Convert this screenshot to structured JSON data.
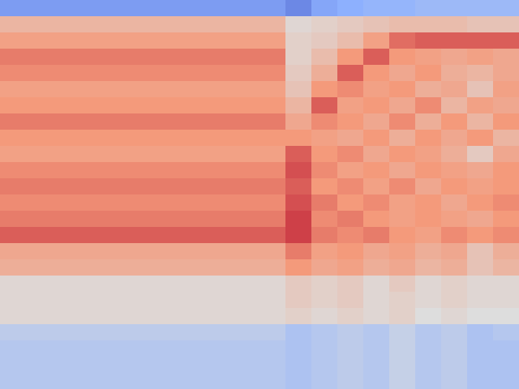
{
  "chart_data": {
    "type": "heatmap",
    "zlim": [
      -1,
      1
    ],
    "tick_labels": false,
    "cells": [
      [
        -0.6,
        -0.6,
        -0.6,
        -0.6,
        -0.6,
        -0.6,
        -0.6,
        -0.6,
        -0.6,
        -0.6,
        -0.6,
        -0.7,
        -0.55,
        -0.5,
        -0.45,
        -0.45,
        -0.4,
        -0.4,
        -0.4,
        -0.4
      ],
      [
        0.3,
        0.3,
        0.3,
        0.3,
        0.3,
        0.3,
        0.3,
        0.3,
        0.3,
        0.3,
        0.3,
        0.05,
        0.1,
        0.15,
        0.2,
        0.25,
        0.25,
        0.25,
        0.2,
        0.2
      ],
      [
        0.45,
        0.45,
        0.45,
        0.45,
        0.45,
        0.45,
        0.45,
        0.45,
        0.45,
        0.45,
        0.45,
        0.1,
        0.15,
        0.25,
        0.45,
        0.65,
        0.7,
        0.7,
        0.7,
        0.7
      ],
      [
        0.6,
        0.6,
        0.6,
        0.6,
        0.6,
        0.6,
        0.6,
        0.6,
        0.6,
        0.6,
        0.6,
        0.1,
        0.25,
        0.5,
        0.7,
        0.5,
        0.45,
        0.4,
        0.45,
        0.4
      ],
      [
        0.55,
        0.55,
        0.55,
        0.55,
        0.55,
        0.55,
        0.55,
        0.55,
        0.55,
        0.55,
        0.55,
        0.15,
        0.35,
        0.7,
        0.5,
        0.4,
        0.5,
        0.35,
        0.3,
        0.4
      ],
      [
        0.45,
        0.45,
        0.45,
        0.45,
        0.45,
        0.45,
        0.45,
        0.45,
        0.45,
        0.45,
        0.45,
        0.2,
        0.5,
        0.55,
        0.45,
        0.5,
        0.35,
        0.4,
        0.2,
        0.45
      ],
      [
        0.5,
        0.5,
        0.5,
        0.5,
        0.5,
        0.5,
        0.5,
        0.5,
        0.5,
        0.5,
        0.5,
        0.3,
        0.7,
        0.45,
        0.5,
        0.4,
        0.55,
        0.3,
        0.45,
        0.4
      ],
      [
        0.6,
        0.6,
        0.6,
        0.6,
        0.6,
        0.6,
        0.6,
        0.6,
        0.6,
        0.6,
        0.6,
        0.4,
        0.55,
        0.5,
        0.4,
        0.55,
        0.35,
        0.5,
        0.3,
        0.5
      ],
      [
        0.5,
        0.5,
        0.5,
        0.5,
        0.5,
        0.5,
        0.5,
        0.5,
        0.5,
        0.5,
        0.5,
        0.5,
        0.45,
        0.4,
        0.5,
        0.35,
        0.5,
        0.4,
        0.5,
        0.3
      ],
      [
        0.45,
        0.45,
        0.45,
        0.45,
        0.45,
        0.45,
        0.45,
        0.45,
        0.45,
        0.45,
        0.45,
        0.7,
        0.5,
        0.55,
        0.4,
        0.5,
        0.45,
        0.35,
        0.15,
        0.4
      ],
      [
        0.55,
        0.55,
        0.55,
        0.55,
        0.55,
        0.55,
        0.55,
        0.55,
        0.55,
        0.55,
        0.55,
        0.75,
        0.55,
        0.45,
        0.5,
        0.4,
        0.5,
        0.45,
        0.4,
        0.5
      ],
      [
        0.6,
        0.6,
        0.6,
        0.6,
        0.6,
        0.6,
        0.6,
        0.6,
        0.6,
        0.6,
        0.6,
        0.7,
        0.5,
        0.55,
        0.45,
        0.55,
        0.4,
        0.5,
        0.45,
        0.5
      ],
      [
        0.55,
        0.55,
        0.55,
        0.55,
        0.55,
        0.55,
        0.55,
        0.55,
        0.55,
        0.55,
        0.55,
        0.75,
        0.6,
        0.5,
        0.55,
        0.45,
        0.5,
        0.4,
        0.5,
        0.55
      ],
      [
        0.6,
        0.6,
        0.6,
        0.6,
        0.6,
        0.6,
        0.6,
        0.6,
        0.6,
        0.6,
        0.6,
        0.8,
        0.55,
        0.6,
        0.5,
        0.45,
        0.5,
        0.45,
        0.4,
        0.5
      ],
      [
        0.7,
        0.7,
        0.7,
        0.7,
        0.7,
        0.7,
        0.7,
        0.7,
        0.7,
        0.7,
        0.7,
        0.8,
        0.6,
        0.55,
        0.6,
        0.5,
        0.45,
        0.55,
        0.5,
        0.55
      ],
      [
        0.4,
        0.4,
        0.4,
        0.4,
        0.4,
        0.4,
        0.4,
        0.4,
        0.4,
        0.4,
        0.4,
        0.6,
        0.45,
        0.5,
        0.4,
        0.45,
        0.35,
        0.4,
        0.2,
        0.35
      ],
      [
        0.35,
        0.35,
        0.35,
        0.35,
        0.35,
        0.35,
        0.35,
        0.35,
        0.35,
        0.35,
        0.35,
        0.5,
        0.4,
        0.45,
        0.35,
        0.4,
        0.3,
        0.35,
        0.2,
        0.3
      ],
      [
        0.05,
        0.05,
        0.05,
        0.05,
        0.05,
        0.05,
        0.05,
        0.05,
        0.05,
        0.05,
        0.05,
        0.15,
        0.1,
        0.15,
        0.05,
        0.15,
        0.05,
        0.1,
        0.05,
        0.05
      ],
      [
        0.05,
        0.05,
        0.05,
        0.05,
        0.05,
        0.05,
        0.05,
        0.05,
        0.05,
        0.05,
        0.05,
        0.15,
        0.1,
        0.15,
        0.05,
        0.1,
        0.05,
        0.1,
        0.05,
        0.05
      ],
      [
        0.05,
        0.05,
        0.05,
        0.05,
        0.05,
        0.05,
        0.05,
        0.05,
        0.05,
        0.05,
        0.05,
        0.1,
        0.05,
        0.1,
        0.05,
        0.1,
        0.0,
        0.05,
        0.0,
        0.0
      ],
      [
        -0.2,
        -0.2,
        -0.2,
        -0.2,
        -0.2,
        -0.2,
        -0.2,
        -0.2,
        -0.2,
        -0.2,
        -0.2,
        -0.3,
        -0.25,
        -0.2,
        -0.25,
        -0.15,
        -0.25,
        -0.2,
        -0.3,
        -0.25
      ],
      [
        -0.25,
        -0.25,
        -0.25,
        -0.25,
        -0.25,
        -0.25,
        -0.25,
        -0.25,
        -0.25,
        -0.25,
        -0.25,
        -0.3,
        -0.25,
        -0.2,
        -0.25,
        -0.15,
        -0.25,
        -0.2,
        -0.3,
        -0.3
      ],
      [
        -0.25,
        -0.25,
        -0.25,
        -0.25,
        -0.25,
        -0.25,
        -0.25,
        -0.25,
        -0.25,
        -0.25,
        -0.25,
        -0.3,
        -0.25,
        -0.2,
        -0.25,
        -0.15,
        -0.25,
        -0.2,
        -0.3,
        -0.3
      ],
      [
        -0.25,
        -0.25,
        -0.25,
        -0.25,
        -0.25,
        -0.25,
        -0.25,
        -0.25,
        -0.25,
        -0.25,
        -0.25,
        -0.3,
        -0.25,
        -0.2,
        -0.25,
        -0.15,
        -0.25,
        -0.2,
        -0.3,
        -0.3
      ]
    ]
  }
}
